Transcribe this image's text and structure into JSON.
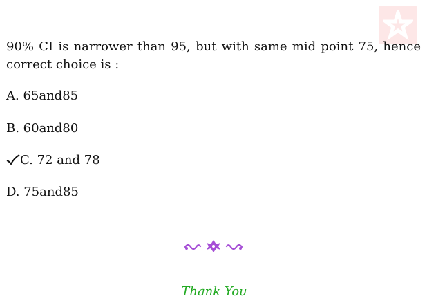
{
  "watermark": {
    "icon": "star-logo-icon",
    "color": "#f28b8b"
  },
  "explanation": "90% CI is narrower than 95, but with same mid point 75, hence correct choice is :",
  "options": [
    {
      "label": "A. 65and85",
      "correct": false
    },
    {
      "label": "B. 60and80",
      "correct": false
    },
    {
      "label": "C. 72 and 78",
      "correct": true
    },
    {
      "label": "D. 75and85",
      "correct": false
    }
  ],
  "divider": {
    "icon": "floral-ornament-icon",
    "color": "#a64fd6",
    "line_color": "#c28be6"
  },
  "footer": {
    "text": "Thank You",
    "color": "#22aa22"
  }
}
